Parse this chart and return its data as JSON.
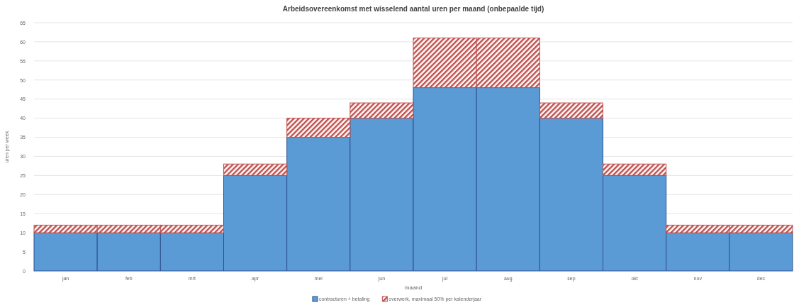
{
  "chart_data": {
    "type": "bar",
    "title": "Arbeidsovereenkomst met wisselend aantal uren per maand (onbepaalde tijd)",
    "xlabel": "maand",
    "ylabel": "uren per week",
    "categories": [
      "jan",
      "feb",
      "mrt",
      "apr",
      "mei",
      "jun",
      "jul",
      "aug",
      "sep",
      "okt",
      "nov",
      "dec"
    ],
    "series": [
      {
        "name": "contracturen + betaling",
        "color": "#5b9bd5",
        "values": [
          10,
          10,
          10,
          25,
          35,
          40,
          48,
          48,
          40,
          25,
          10,
          10
        ]
      },
      {
        "name": "overwerk, maximaal 50% per kalenderjaar",
        "color": "#c0504d",
        "values": [
          2,
          2,
          2,
          3,
          5,
          4,
          13,
          13,
          4,
          3,
          2,
          2
        ]
      }
    ],
    "stacked": true,
    "ylim": [
      0,
      65
    ],
    "yticks": [
      0,
      5,
      10,
      15,
      20,
      25,
      30,
      35,
      40,
      45,
      50,
      55,
      60,
      65
    ],
    "grid": "y",
    "legend": "bottom"
  }
}
